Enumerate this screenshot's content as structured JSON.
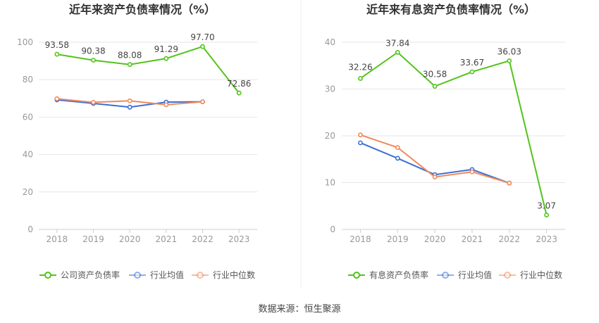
{
  "source_label": "数据来源：恒生聚源",
  "colors": {
    "company": "#52c41a",
    "industry_avg": "#3b6fd4",
    "industry_median": "#f08a5d",
    "grid": "#e6e6e6",
    "axis": "#999999",
    "title": "#333333",
    "label": "#444444"
  },
  "chart_data": [
    {
      "type": "line",
      "title": "近年来资产负债率情况（%）",
      "categories": [
        "2018",
        "2019",
        "2020",
        "2021",
        "2022",
        "2023"
      ],
      "ylim": [
        0,
        100
      ],
      "yticks": [
        0,
        20,
        40,
        60,
        80,
        100
      ],
      "grid": true,
      "legend_position": "bottom",
      "series": [
        {
          "name": "公司资产负债率",
          "key": "company",
          "values": [
            93.58,
            90.38,
            88.08,
            91.29,
            97.7,
            72.86
          ],
          "labels": [
            "93.58",
            "90.38",
            "88.08",
            "91.29",
            "97.70",
            "72.86"
          ]
        },
        {
          "name": "行业均值",
          "key": "industry_avg",
          "values": [
            69.2,
            67.3,
            65.3,
            68.0,
            68.2,
            null
          ]
        },
        {
          "name": "行业中位数",
          "key": "industry_median",
          "values": [
            69.8,
            67.9,
            68.7,
            66.6,
            68.2,
            null
          ]
        }
      ]
    },
    {
      "type": "line",
      "title": "近年来有息资产负债率情况（%）",
      "categories": [
        "2018",
        "2019",
        "2020",
        "2021",
        "2022",
        "2023"
      ],
      "ylim": [
        0,
        40
      ],
      "yticks": [
        0,
        10,
        20,
        30,
        40
      ],
      "grid": true,
      "legend_position": "bottom",
      "series": [
        {
          "name": "有息资产负债率",
          "key": "company",
          "values": [
            32.26,
            37.84,
            30.58,
            33.67,
            36.03,
            3.07
          ],
          "labels": [
            "32.26",
            "37.84",
            "30.58",
            "33.67",
            "36.03",
            "3.07"
          ]
        },
        {
          "name": "行业均值",
          "key": "industry_avg",
          "values": [
            18.5,
            15.2,
            11.7,
            12.8,
            9.9,
            null
          ]
        },
        {
          "name": "行业中位数",
          "key": "industry_median",
          "values": [
            20.2,
            17.5,
            11.2,
            12.3,
            9.9,
            null
          ]
        }
      ]
    }
  ]
}
